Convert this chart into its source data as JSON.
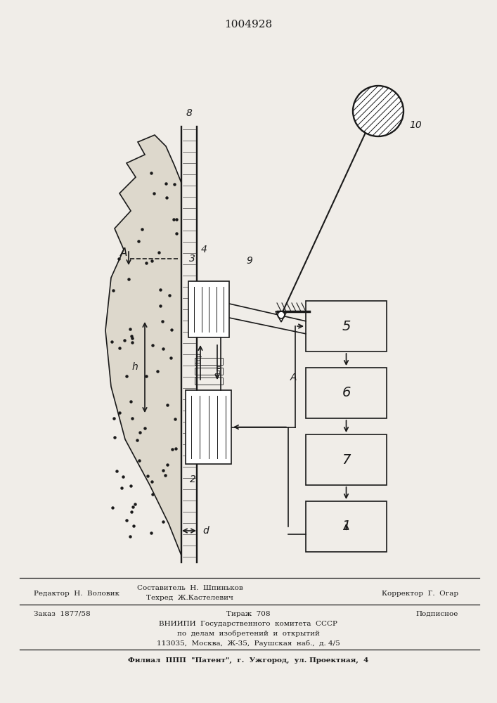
{
  "title": "1004928",
  "bg_color": "#f0ede8",
  "line_color": "#1a1a1a",
  "footer_editor": "Редактор  Н.  Воловик",
  "footer_compiler_top": "Составитель  Н.  Шпиньков",
  "footer_compiler_bot": "Техред  Ж.Кастелевич",
  "footer_corrector": "Корректор  Г.  Огар",
  "footer_order": "Заказ  1877/58",
  "footer_tirazh": "Тираж  708",
  "footer_podpisnoe": "Подписное",
  "footer_vniipи": "ВНИИПИ  Государственного  комитета  СССР",
  "footer_dela": "по  делам  изобретений  и  открытий",
  "footer_addr": "113035,  Москва,  Ж-35,  Раушская  наб.,  д. 4/5",
  "footer_filial": "Филиал  ППП  \"Патент\",  г.  Ужгород,  ул. Проектная,  4"
}
